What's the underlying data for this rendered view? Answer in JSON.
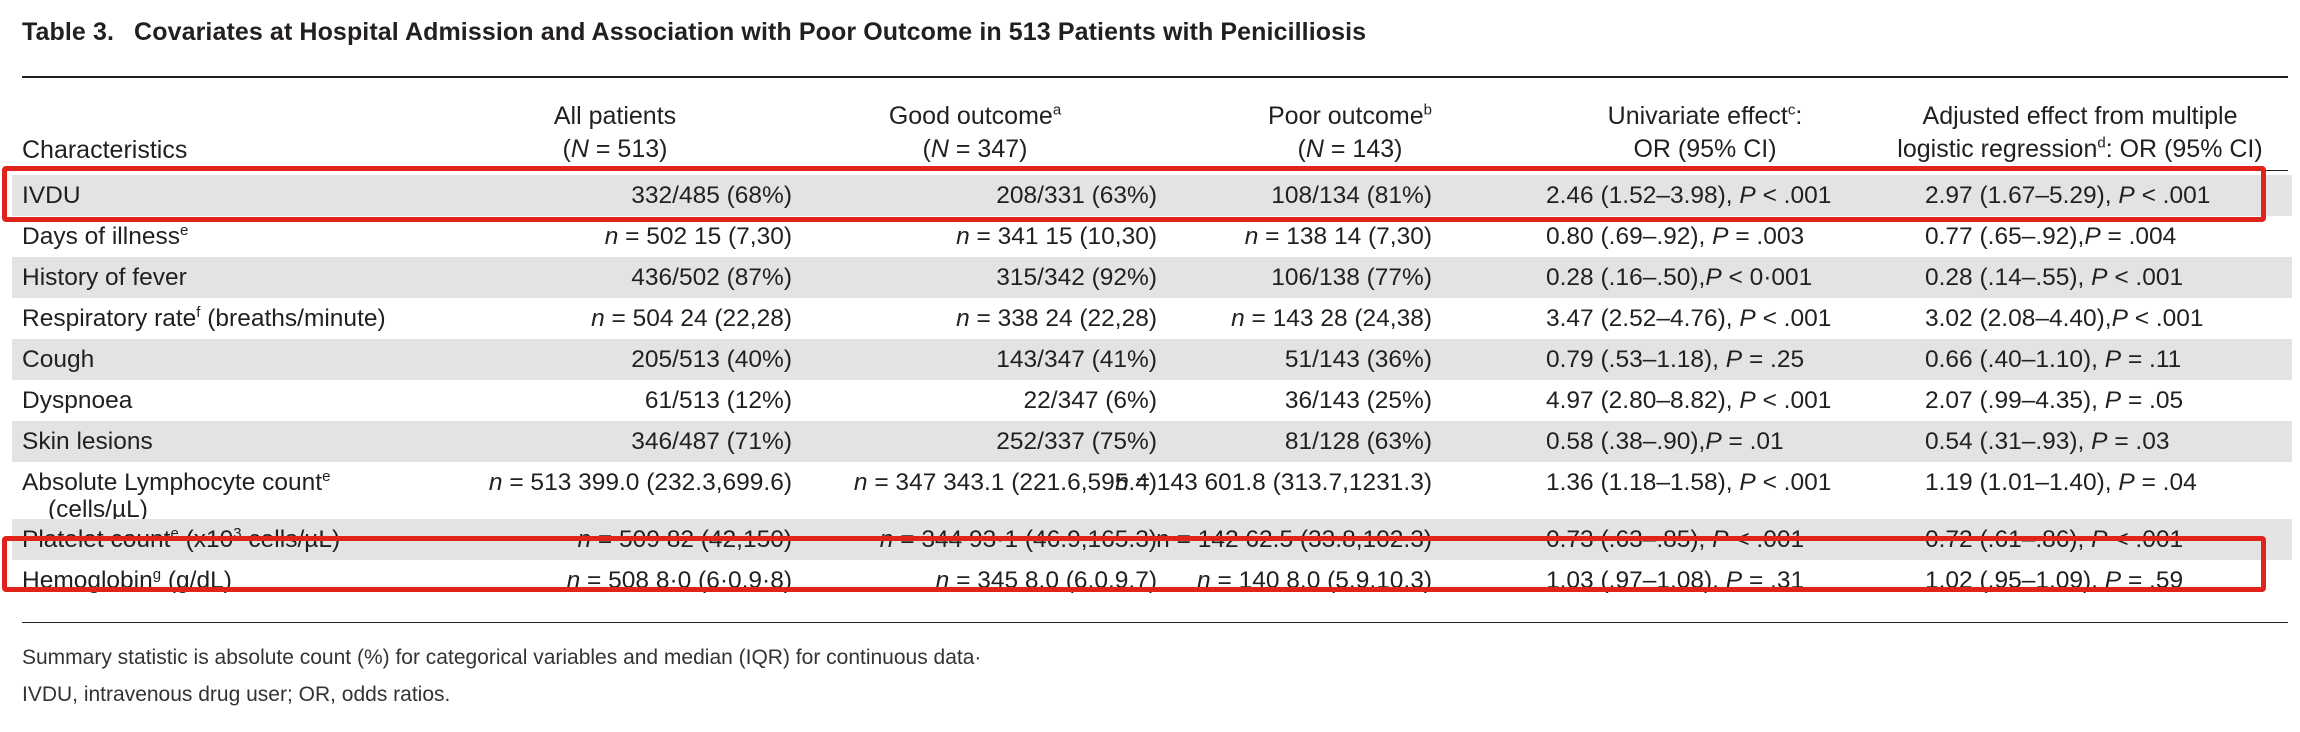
{
  "title": {
    "number": "Table 3.",
    "text": "Covariates at Hospital Admission and Association with Poor Outcome in 513 Patients with Penicilliosis"
  },
  "headers": {
    "characteristics": "Characteristics",
    "all": {
      "line1": "All patients",
      "n_label": "N",
      "n_value": " = 513)"
    },
    "good": {
      "line1": "Good outcome",
      "sup": "a",
      "n_label": "N",
      "n_value": " = 347)"
    },
    "poor": {
      "line1": "Poor outcome",
      "sup": "b",
      "n_label": "N",
      "n_value": " = 143)"
    },
    "univariate": {
      "line1": "Univariate effect",
      "sup": "c",
      "line1_end": ":",
      "line2": "OR (95% CI)"
    },
    "adjusted": {
      "line1": "Adjusted effect from multiple",
      "line2a": "logistic regression",
      "sup": "d",
      "line2b": ": OR (95% CI)"
    }
  },
  "rows": [
    {
      "name": "IVDU",
      "all": "332/485 (68%)",
      "good": "208/331 (63%)",
      "poor": "108/134 (81%)",
      "uni": "2.46 (1.52–3.98), ",
      "uni_p": " < .001",
      "adj": "2.97 (1.67–5.29), ",
      "adj_p": " < .001"
    },
    {
      "name": "Days of illness",
      "sup": "e",
      "all_n": " = 502 ",
      "all": "15 (7,30)",
      "good_n": " = 341 ",
      "good": "15 (10,30)",
      "poor_n": " = 138 ",
      "poor": "14 (7,30)",
      "uni": "0.80 (.69–.92), ",
      "uni_p": " = .003",
      "adj": "0.77 (.65–.92),",
      "adj_p": " = .004"
    },
    {
      "name": "History of fever",
      "all": "436/502 (87%)",
      "good": "315/342 (92%)",
      "poor": "106/138 (77%)",
      "uni": "0.28 (.16–.50),",
      "uni_p": " < 0·001",
      "adj": "0.28 (.14–.55), ",
      "adj_p": " < .001"
    },
    {
      "name": "Respiratory rate",
      "sup": "f",
      "name_end": " (breaths/minute)",
      "all_n": " = 504 ",
      "all": "24 (22,28)",
      "good_n": " = 338 ",
      "good": "24 (22,28)",
      "poor_n": " = 143 ",
      "poor": "28 (24,38)",
      "uni": "3.47 (2.52–4.76), ",
      "uni_p": " < .001",
      "adj": "3.02 (2.08–4.40),",
      "adj_p": " < .001"
    },
    {
      "name": "Cough",
      "all": "205/513 (40%)",
      "good": "143/347 (41%)",
      "poor": "51/143 (36%)",
      "uni": "0.79 (.53–1.18), ",
      "uni_p": " = .25",
      "adj": "0.66 (.40–1.10), ",
      "adj_p": " = .11"
    },
    {
      "name": "Dyspnoea",
      "all": "61/513 (12%)",
      "good": "22/347 (6%)",
      "poor": "36/143 (25%)",
      "uni": "4.97 (2.80–8.82), ",
      "uni_p": " < .001",
      "adj": "2.07 (.99–4.35), ",
      "adj_p": " = .05"
    },
    {
      "name": "Skin lesions",
      "all": "346/487 (71%)",
      "good": "252/337 (75%)",
      "poor": "81/128 (63%)",
      "uni": "0.58 (.38–.90),",
      "uni_p": " = .01",
      "adj": "0.54 (.31–.93), ",
      "adj_p": " = .03"
    },
    {
      "name": "Absolute Lymphocyte count",
      "sup": "e",
      "name_line2": "(cells/µL)",
      "all_n": " = 513 ",
      "all": "399.0 (232.3,699.6)",
      "good_n": " = 347 ",
      "good": "343.1 (221.6,595.4)",
      "poor_n": " = 143 ",
      "poor": "601.8 (313.7,1231.3)",
      "uni": "1.36 (1.18–1.58), ",
      "uni_p": " < .001",
      "adj": "1.19 (1.01–1.40), ",
      "adj_p": " = .04"
    },
    {
      "name": "Platelet count",
      "sup": "e",
      "name_mid": " (x10",
      "sup2": "3",
      "name_end": " cells/µL)",
      "all_n": " = 509 ",
      "all": "82 (42,150)",
      "good_n": " = 344 ",
      "good": "93·1 (46.9,165.3)",
      "poor_n_text": "n = 142 ",
      "poor": "62.5 (33.8,102.3)",
      "uni": "0.73 (.63–.85), ",
      "uni_p": " < .001",
      "adj": "0.72 (.61–.86), ",
      "adj_p": " < .001"
    },
    {
      "name": "Hemoglobin",
      "sup": "g",
      "name_end": " (g/dL)",
      "all_n": " = 508 ",
      "all": "8·0 (6·0,9·8)",
      "good_n": " = 345 ",
      "good": "8.0 (6.0,9.7)",
      "poor_n": " = 140 ",
      "poor": "8.0 (5.9,10.3)",
      "uni": "1.03 (.97–1.08), ",
      "uni_p": " = .31",
      "adj": "1.02 (.95–1.09), ",
      "adj_p": " = .59"
    }
  ],
  "symbols": {
    "n": "n",
    "P": "P"
  },
  "footnotes": [
    "Summary statistic is absolute count (%) for categorical variables and median (IQR) for continuous data·",
    "IVDU, intravenous drug user; OR, odds ratios."
  ],
  "highlight_color": "#e0241b"
}
